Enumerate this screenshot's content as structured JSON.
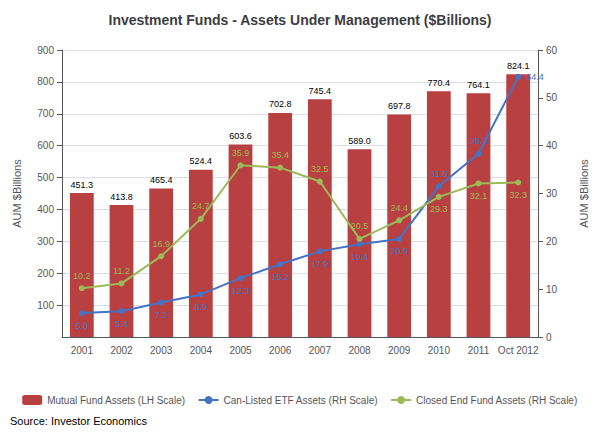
{
  "chart_data": {
    "type": "bar",
    "title": "Investment Funds - Assets Under Management ($Billions)",
    "categories": [
      "2001",
      "2002",
      "2003",
      "2004",
      "2005",
      "2006",
      "2007",
      "2008",
      "2009",
      "2010",
      "2011",
      "Oct 2012"
    ],
    "series": [
      {
        "name": "Mutual Fund Assets (LH Scale)",
        "type": "bar",
        "color": "#b94040",
        "values": [
          451.3,
          413.8,
          465.4,
          524.4,
          603.6,
          702.8,
          745.4,
          589.0,
          697.8,
          770.4,
          764.1,
          824.1
        ],
        "value_labels": [
          "451.3",
          "413.8",
          "465.4",
          "524.4",
          "603.6",
          "702.8",
          "745.4",
          "589.0",
          "697.8",
          "770.4",
          "764.1",
          "824.1"
        ]
      },
      {
        "name": "Can-Listed ETF Assets (RH Scale)",
        "type": "line",
        "axis": "y2",
        "color": "#4472c4",
        "marker": "circle",
        "values": [
          5.0,
          5.4,
          7.2,
          8.9,
          12.3,
          15.2,
          17.9,
          19.4,
          20.5,
          31.5,
          38.3,
          54.4
        ],
        "value_labels": [
          "5.0",
          "5.4",
          "7.2",
          "8.9",
          "12.3",
          "15.2",
          "17.9",
          "19.4",
          "20.5",
          "31.5",
          "38.3",
          "54.4"
        ]
      },
      {
        "name": "Closed End Fund Assets (RH Scale)",
        "type": "line",
        "axis": "y2",
        "color": "#9bbb59",
        "marker": "circle",
        "values": [
          10.2,
          11.2,
          16.9,
          24.7,
          35.9,
          35.4,
          32.5,
          20.5,
          24.4,
          29.3,
          32.1,
          32.3
        ],
        "value_labels": [
          "10.2",
          "11.2",
          "16.9",
          "24.7",
          "35.9",
          "35.4",
          "32.5",
          "20.5",
          "24.4",
          "29.3",
          "32.1",
          "32.3"
        ]
      }
    ],
    "ylabel": "AUM $Billions",
    "y2label": "AUM $Billions",
    "ylim": [
      0,
      900
    ],
    "yticks": [
      100,
      200,
      300,
      400,
      500,
      600,
      700,
      800,
      900
    ],
    "y2lim": [
      0,
      60
    ],
    "y2ticks": [
      0,
      10,
      20,
      30,
      40,
      50,
      60
    ],
    "grid": true,
    "legend": "bottom",
    "data_labels": true,
    "annotations": [
      "Source: Investor Economics"
    ]
  }
}
